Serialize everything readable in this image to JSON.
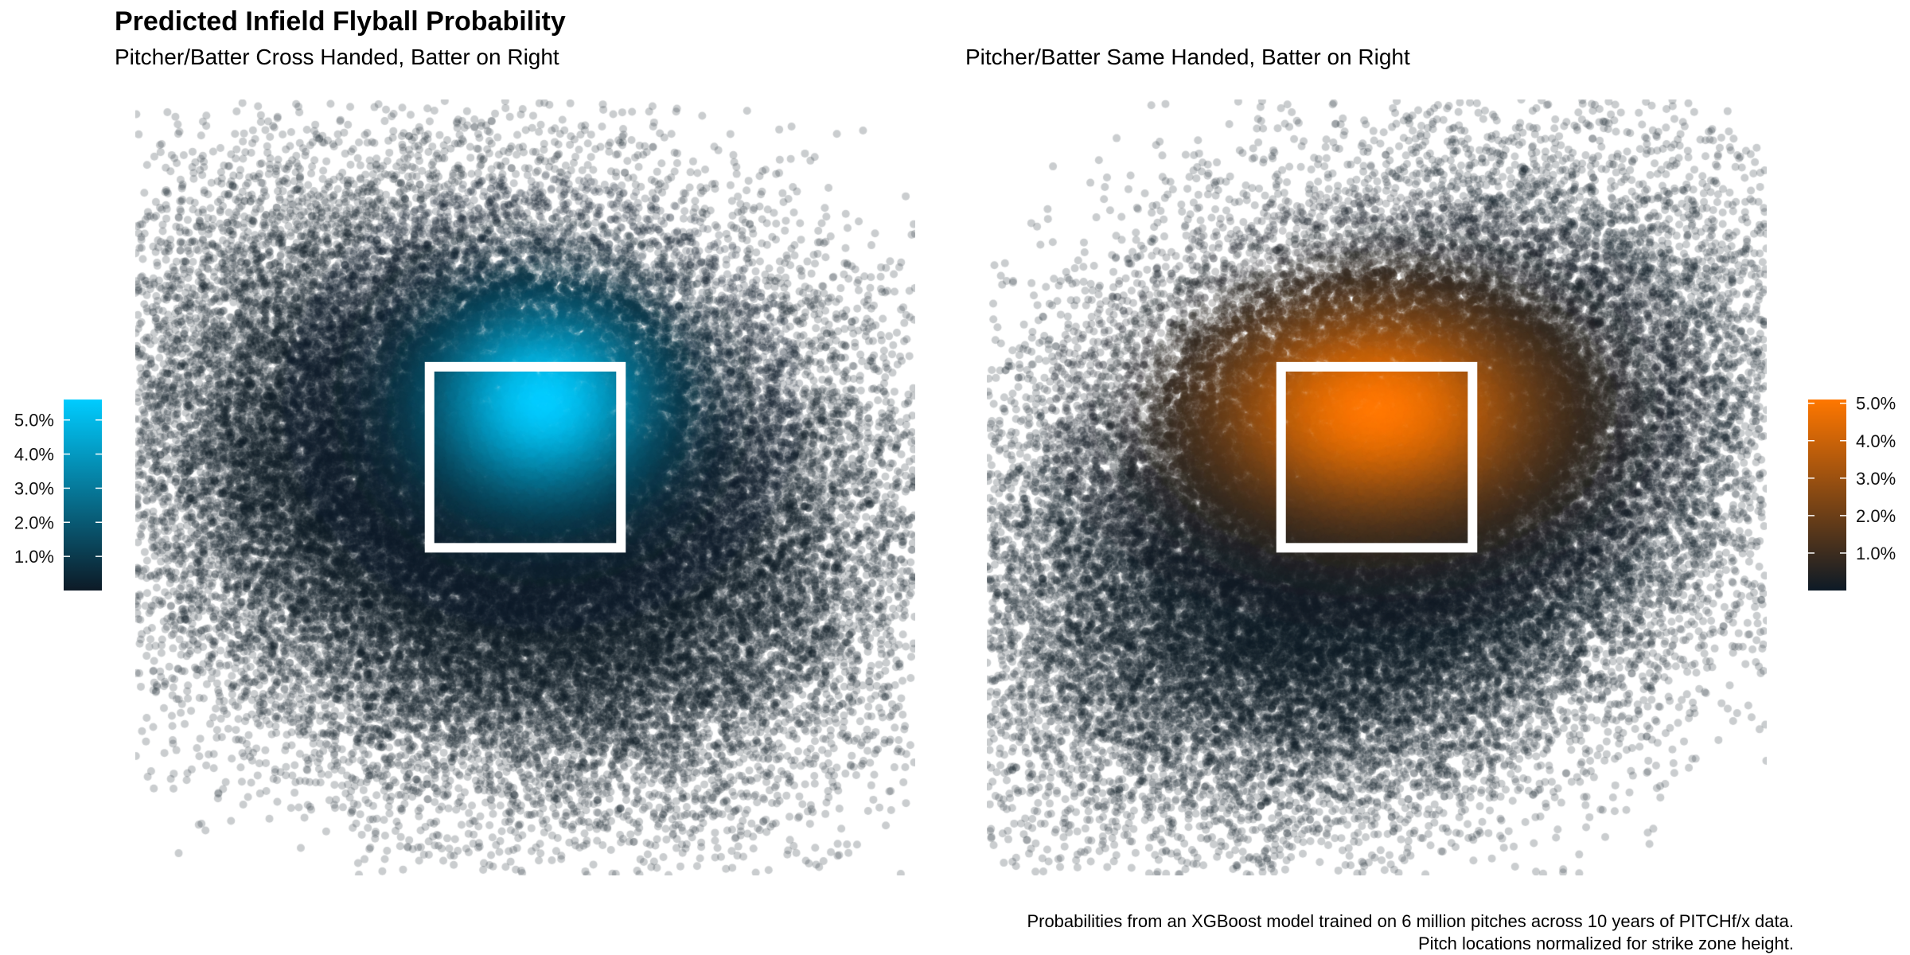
{
  "title": "Predicted Infield Flyball Probability",
  "caption": {
    "line1": "Probabilities from an XGBoost model trained on 6 million pitches across 10 years of PITCHf/x data.",
    "line2": "Pitch locations normalized for strike zone height."
  },
  "colors": {
    "dark": "#0d1a26",
    "cyan": "#00ccff",
    "orange": "#ff7700",
    "strike_zone": "#ffffff"
  },
  "chart_data": [
    {
      "type": "scatter",
      "subtitle": "Pitcher/Batter Cross Handed, Batter on Right",
      "xlabel": "",
      "ylabel": "",
      "xlim": [
        -2.2,
        2.2
      ],
      "ylim": [
        -0.9,
        3.6
      ],
      "strike_zone": {
        "x": [
          -0.54,
          0.54
        ],
        "y": [
          1.0,
          2.05
        ]
      },
      "color_scale": {
        "low": "#0d1a26",
        "high": "#00ccff",
        "min": 0.0,
        "max": 0.056
      },
      "legend": {
        "ticks": [
          "1.0%",
          "2.0%",
          "3.0%",
          "4.0%",
          "5.0%"
        ],
        "values": [
          0.01,
          0.02,
          0.03,
          0.04,
          0.05
        ],
        "position": "left"
      },
      "point_cloud": {
        "n": 60000,
        "center": [
          -0.1,
          1.35
        ],
        "sd": [
          0.95,
          0.78
        ],
        "correlation": -0.18
      },
      "hotspot": {
        "center": [
          0.1,
          1.85
        ],
        "peak": 0.056,
        "spread": [
          0.42,
          0.38
        ]
      },
      "grid": false
    },
    {
      "type": "scatter",
      "subtitle": "Pitcher/Batter Same Handed, Batter on Right",
      "xlabel": "",
      "ylabel": "",
      "xlim": [
        -2.2,
        2.2
      ],
      "ylim": [
        -0.9,
        3.6
      ],
      "strike_zone": {
        "x": [
          -0.54,
          0.54
        ],
        "y": [
          1.0,
          2.05
        ]
      },
      "color_scale": {
        "low": "#0d1a26",
        "high": "#ff7700",
        "min": 0.0,
        "max": 0.051
      },
      "legend": {
        "ticks": [
          "1.0%",
          "2.0%",
          "3.0%",
          "4.0%",
          "5.0%"
        ],
        "values": [
          0.01,
          0.02,
          0.03,
          0.04,
          0.05
        ],
        "position": "right"
      },
      "point_cloud": {
        "n": 60000,
        "center": [
          0.0,
          1.3
        ],
        "sd": [
          0.95,
          0.8
        ],
        "correlation": 0.3
      },
      "hotspot": {
        "center": [
          0.0,
          1.8
        ],
        "peak": 0.051,
        "spread": [
          0.62,
          0.42
        ]
      },
      "grid": false
    }
  ]
}
